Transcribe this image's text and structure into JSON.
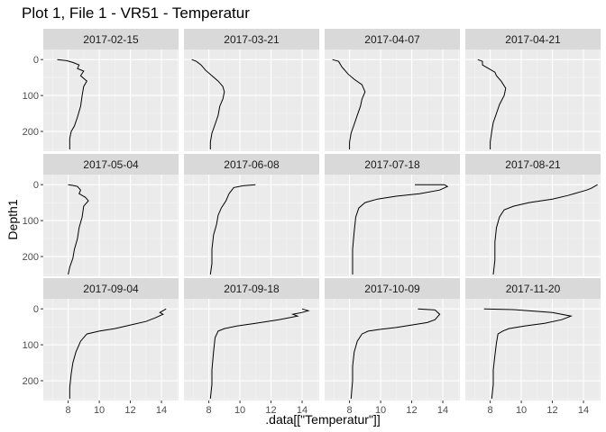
{
  "title": "Plot 1, File 1 - VR51  -  Temperatur",
  "colors": {
    "panel_background": "#ebebeb",
    "strip_background": "#d9d9d9",
    "grid_major": "#ffffff",
    "line": "#000000",
    "tick_text": "#4d4d4d"
  },
  "chart_data": {
    "type": "line",
    "layout": "facet-grid 3x4",
    "xlabel": ".data[[\"Temperatur\"]]",
    "ylabel": "Depth1",
    "x_ticks": [
      8,
      10,
      12,
      14
    ],
    "y_ticks": [
      0,
      100,
      200
    ],
    "xlim": [
      6.4,
      15.1
    ],
    "ylim": [
      255,
      -28
    ],
    "y_reversed": true,
    "grid": true,
    "series": [
      {
        "name": "2017-02-15",
        "x": [
          7.3,
          7.9,
          8.3,
          8.7,
          8.6,
          9.0,
          8.8,
          9.2,
          9.0,
          8.9,
          8.8,
          8.6,
          8.4,
          8.2,
          8.1,
          8.1
        ],
        "y": [
          0,
          3,
          8,
          15,
          25,
          32,
          45,
          60,
          75,
          100,
          130,
          160,
          185,
          200,
          220,
          250
        ]
      },
      {
        "name": "2017-03-21",
        "x": [
          6.9,
          7.2,
          7.5,
          7.8,
          8.2,
          8.6,
          8.9,
          9.0,
          8.9,
          8.7,
          8.6,
          8.4,
          8.2,
          8.1,
          8.1
        ],
        "y": [
          0,
          5,
          15,
          30,
          45,
          60,
          75,
          90,
          110,
          130,
          155,
          180,
          205,
          230,
          250
        ]
      },
      {
        "name": "2017-04-07",
        "x": [
          6.9,
          7.3,
          7.5,
          7.9,
          8.3,
          8.8,
          9.0,
          8.8,
          8.7,
          8.5,
          8.3,
          8.1,
          8.0,
          8.0
        ],
        "y": [
          0,
          5,
          20,
          40,
          55,
          70,
          90,
          110,
          130,
          155,
          180,
          205,
          230,
          250
        ]
      },
      {
        "name": "2017-04-21",
        "x": [
          7.2,
          7.5,
          7.5,
          7.9,
          8.3,
          8.4,
          8.7,
          9.0,
          8.9,
          8.6,
          8.4,
          8.2,
          8.1,
          8.0,
          8.0
        ],
        "y": [
          0,
          5,
          15,
          25,
          35,
          45,
          60,
          80,
          100,
          125,
          150,
          175,
          200,
          230,
          250
        ]
      },
      {
        "name": "2017-05-04",
        "x": [
          8.0,
          8.3,
          8.6,
          8.8,
          8.7,
          9.1,
          9.3,
          9.0,
          8.9,
          8.7,
          8.6,
          8.4,
          8.3,
          8.1,
          8.0
        ],
        "y": [
          0,
          2,
          5,
          15,
          25,
          35,
          45,
          60,
          90,
          120,
          150,
          180,
          205,
          230,
          250
        ]
      },
      {
        "name": "2017-06-08",
        "x": [
          11.0,
          10.2,
          9.6,
          9.3,
          9.1,
          8.8,
          8.6,
          8.5,
          8.3,
          8.2,
          8.2,
          8.1
        ],
        "y": [
          0,
          3,
          8,
          25,
          45,
          65,
          85,
          110,
          140,
          180,
          220,
          250
        ]
      },
      {
        "name": "2017-07-18",
        "x": [
          12.2,
          14.1,
          14.3,
          13.8,
          12.5,
          11.0,
          9.8,
          9.0,
          8.6,
          8.4,
          8.3,
          8.2,
          8.2,
          8.2
        ],
        "y": [
          0,
          0,
          5,
          15,
          25,
          32,
          40,
          50,
          65,
          90,
          130,
          180,
          220,
          250
        ]
      },
      {
        "name": "2017-08-21",
        "x": [
          14.9,
          14.7,
          14.5,
          14.2,
          13.8,
          13.0,
          12.0,
          10.5,
          9.5,
          8.9,
          8.6,
          8.4,
          8.3,
          8.3,
          8.2
        ],
        "y": [
          0,
          5,
          10,
          15,
          20,
          30,
          40,
          50,
          60,
          70,
          90,
          120,
          160,
          210,
          250
        ]
      },
      {
        "name": "2017-09-04",
        "x": [
          14.3,
          14.1,
          13.9,
          14.1,
          13.6,
          13.0,
          12.0,
          11.0,
          10.0,
          9.2,
          8.8,
          8.5,
          8.3,
          8.2,
          8.1,
          8.1
        ],
        "y": [
          0,
          5,
          10,
          15,
          25,
          35,
          45,
          55,
          62,
          70,
          90,
          120,
          150,
          180,
          220,
          250
        ]
      },
      {
        "name": "2017-09-18",
        "x": [
          14.0,
          14.4,
          14.0,
          13.4,
          13.7,
          12.5,
          11.0,
          9.8,
          9.0,
          8.6,
          8.4,
          8.3,
          8.2,
          8.2,
          8.1
        ],
        "y": [
          0,
          5,
          10,
          15,
          20,
          30,
          40,
          48,
          55,
          62,
          80,
          120,
          170,
          210,
          250
        ]
      },
      {
        "name": "2017-10-09",
        "x": [
          12.4,
          13.5,
          13.8,
          13.5,
          13.0,
          12.0,
          11.0,
          10.0,
          9.2,
          8.8,
          8.5,
          8.3,
          8.2,
          8.2,
          8.1
        ],
        "y": [
          0,
          3,
          15,
          30,
          38,
          45,
          52,
          57,
          62,
          70,
          90,
          120,
          160,
          200,
          250
        ]
      },
      {
        "name": "2017-11-20",
        "x": [
          7.6,
          9.5,
          12.0,
          13.2,
          12.6,
          11.5,
          10.2,
          9.2,
          8.8,
          8.5,
          8.4,
          8.3,
          8.2,
          8.2,
          8.1
        ],
        "y": [
          0,
          2,
          10,
          20,
          30,
          40,
          48,
          55,
          62,
          70,
          95,
          130,
          170,
          210,
          250
        ]
      }
    ]
  }
}
